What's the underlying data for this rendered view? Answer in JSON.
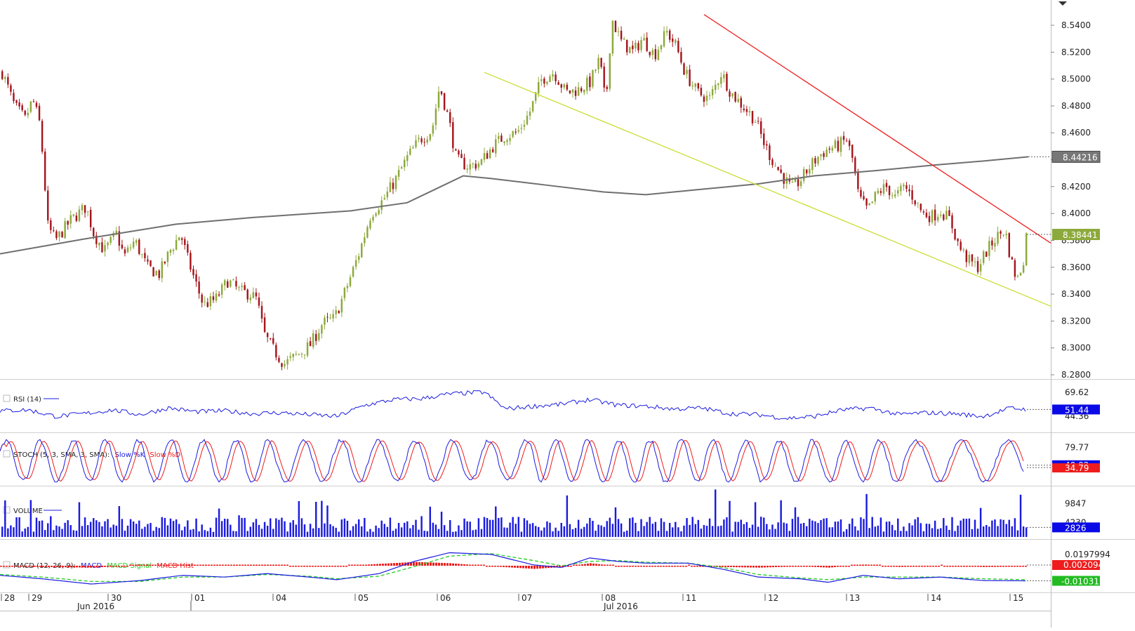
{
  "chart_data": [
    {
      "id": "price",
      "type": "candlestick",
      "ylim": [
        8.28,
        8.55
      ],
      "y_ticks": [
        "8.5400",
        "8.5200",
        "8.5000",
        "8.4800",
        "8.4600",
        "8.4400",
        "8.4200",
        "8.4000",
        "8.3800",
        "8.3600",
        "8.3400",
        "8.3200",
        "8.3000",
        "8.2800"
      ],
      "y_tick_values": [
        8.54,
        8.52,
        8.5,
        8.48,
        8.46,
        8.44,
        8.42,
        8.4,
        8.38,
        8.36,
        8.34,
        8.32,
        8.3,
        8.28
      ],
      "bar_count": 360,
      "close_keypoints": [
        [
          0,
          8.505
        ],
        [
          8,
          8.48
        ],
        [
          15,
          8.47
        ],
        [
          20,
          8.485
        ],
        [
          25,
          8.465
        ],
        [
          30,
          8.39
        ],
        [
          35,
          8.38
        ],
        [
          45,
          8.395
        ],
        [
          55,
          8.405
        ],
        [
          60,
          8.385
        ],
        [
          67,
          8.372
        ],
        [
          75,
          8.385
        ],
        [
          80,
          8.368
        ],
        [
          87,
          8.38
        ],
        [
          95,
          8.36
        ],
        [
          103,
          8.355
        ],
        [
          110,
          8.372
        ],
        [
          117,
          8.385
        ],
        [
          122,
          8.365
        ],
        [
          127,
          8.348
        ],
        [
          132,
          8.332
        ],
        [
          140,
          8.336
        ],
        [
          148,
          8.35
        ],
        [
          156,
          8.342
        ],
        [
          163,
          8.34
        ],
        [
          167,
          8.336
        ],
        [
          172,
          8.31
        ],
        [
          177,
          8.3
        ],
        [
          185,
          8.288
        ],
        [
          194,
          8.295
        ],
        [
          202,
          8.302
        ],
        [
          210,
          8.318
        ],
        [
          218,
          8.322
        ],
        [
          226,
          8.345
        ],
        [
          234,
          8.37
        ],
        [
          242,
          8.4
        ],
        [
          250,
          8.41
        ],
        [
          258,
          8.425
        ],
        [
          266,
          8.442
        ],
        [
          274,
          8.455
        ],
        [
          282,
          8.462
        ],
        [
          287,
          8.495
        ],
        [
          293,
          8.47
        ],
        [
          298,
          8.44
        ],
        [
          306,
          8.435
        ],
        [
          314,
          8.438
        ],
        [
          322,
          8.45
        ],
        [
          330,
          8.458
        ],
        [
          338,
          8.46
        ],
        [
          346,
          8.475
        ],
        [
          354,
          8.5
        ],
        [
          362,
          8.505
        ],
        [
          370,
          8.49
        ],
        [
          378,
          8.492
        ],
        [
          386,
          8.498
        ],
        [
          392,
          8.515
        ],
        [
          396,
          8.48
        ],
        [
          400,
          8.545
        ],
        [
          406,
          8.528
        ],
        [
          414,
          8.52
        ],
        [
          420,
          8.53
        ],
        [
          428,
          8.518
        ],
        [
          436,
          8.535
        ],
        [
          442,
          8.525
        ],
        [
          448,
          8.505
        ],
        [
          456,
          8.49
        ],
        [
          464,
          8.485
        ],
        [
          472,
          8.505
        ],
        [
          478,
          8.49
        ],
        [
          486,
          8.48
        ],
        [
          494,
          8.47
        ],
        [
          500,
          8.452
        ],
        [
          506,
          8.438
        ],
        [
          512,
          8.428
        ],
        [
          518,
          8.418
        ],
        [
          524,
          8.425
        ],
        [
          530,
          8.435
        ],
        [
          536,
          8.443
        ],
        [
          542,
          8.448
        ],
        [
          548,
          8.45
        ],
        [
          554,
          8.455
        ],
        [
          558,
          8.44
        ],
        [
          562,
          8.412
        ],
        [
          568,
          8.402
        ],
        [
          574,
          8.415
        ],
        [
          580,
          8.42
        ],
        [
          586,
          8.412
        ],
        [
          592,
          8.42
        ],
        [
          598,
          8.412
        ],
        [
          604,
          8.4
        ],
        [
          610,
          8.398
        ],
        [
          616,
          8.402
        ],
        [
          622,
          8.395
        ],
        [
          628,
          8.375
        ],
        [
          634,
          8.365
        ],
        [
          640,
          8.36
        ],
        [
          646,
          8.372
        ],
        [
          652,
          8.382
        ],
        [
          658,
          8.388
        ],
        [
          662,
          8.365
        ],
        [
          666,
          8.35
        ],
        [
          670,
          8.365
        ],
        [
          672,
          8.384
        ]
      ],
      "trendlines": [
        {
          "color": "#ee1c1c",
          "points": [
            [
              1003,
              8.548
            ],
            [
              1497,
              8.378
            ]
          ]
        },
        {
          "color": "#ccdd33",
          "points": [
            [
              690,
              8.505
            ],
            [
              1497,
              8.331
            ]
          ]
        }
      ],
      "moving_average": {
        "color": "#6f6f6f",
        "points": [
          [
            0,
            8.37
          ],
          [
            120,
            8.381
          ],
          [
            250,
            8.392
          ],
          [
            360,
            8.397
          ],
          [
            500,
            8.402
          ],
          [
            580,
            8.408
          ],
          [
            620,
            8.418
          ],
          [
            660,
            8.428
          ],
          [
            700,
            8.426
          ],
          [
            780,
            8.421
          ],
          [
            860,
            8.416
          ],
          [
            920,
            8.414
          ],
          [
            1000,
            8.418
          ],
          [
            1080,
            8.422
          ],
          [
            1160,
            8.428
          ],
          [
            1250,
            8.432
          ],
          [
            1330,
            8.436
          ],
          [
            1400,
            8.439
          ],
          [
            1465,
            8.44216
          ]
        ]
      },
      "last_ma_label": "8.44216",
      "last_price_label": "8.38441",
      "ma_color": "#666666",
      "last_price_color": "#8ca93b"
    },
    {
      "id": "rsi",
      "type": "line",
      "legend": "RSI (14)",
      "ylim": [
        30,
        78
      ],
      "y_ticks": [
        "69.62",
        "44.36"
      ],
      "y_tick_values": [
        69.62,
        44.36
      ],
      "color": "#1b1bdf",
      "keypoints": [
        [
          0,
          50
        ],
        [
          40,
          51
        ],
        [
          80,
          44
        ],
        [
          120,
          47
        ],
        [
          160,
          51
        ],
        [
          200,
          46
        ],
        [
          240,
          53
        ],
        [
          280,
          49
        ],
        [
          320,
          50
        ],
        [
          360,
          47
        ],
        [
          400,
          48
        ],
        [
          440,
          46
        ],
        [
          480,
          44
        ],
        [
          520,
          56
        ],
        [
          560,
          62
        ],
        [
          600,
          63
        ],
        [
          640,
          68
        ],
        [
          690,
          70
        ],
        [
          720,
          52
        ],
        [
          760,
          55
        ],
        [
          800,
          57
        ],
        [
          840,
          62
        ],
        [
          880,
          56
        ],
        [
          920,
          55
        ],
        [
          960,
          52
        ],
        [
          1000,
          53
        ],
        [
          1040,
          47
        ],
        [
          1080,
          46
        ],
        [
          1120,
          42
        ],
        [
          1160,
          44
        ],
        [
          1200,
          51
        ],
        [
          1240,
          53
        ],
        [
          1280,
          46
        ],
        [
          1320,
          48
        ],
        [
          1360,
          47
        ],
        [
          1400,
          44
        ],
        [
          1440,
          53
        ],
        [
          1463,
          51.44
        ]
      ],
      "last_label": "51.44",
      "last_color": "#0a0ae6"
    },
    {
      "id": "stoch",
      "type": "line",
      "legend_prefix": "STOCH (5, 3, SMA, 3, SMA):",
      "series": [
        {
          "name": "Slow %K",
          "color": "#1b1bdf"
        },
        {
          "name": "Slow %D",
          "color": "#ee1c1c"
        }
      ],
      "ylim": [
        0,
        100
      ],
      "y_ticks": [
        "79.77"
      ],
      "y_tick_values": [
        79.77
      ],
      "last_labels": [
        "40.02",
        "34.79"
      ],
      "last_colors": [
        "#0a0ae6",
        "#ee1c1c"
      ]
    },
    {
      "id": "volume",
      "type": "bar",
      "legend": "VOLUME",
      "ylim": [
        0,
        13500
      ],
      "y_ticks": [
        "9847",
        "4230"
      ],
      "y_tick_values": [
        9847,
        4230
      ],
      "color": "#1b1bdf",
      "last_label": "2826",
      "last_color": "#0a0ae6"
    },
    {
      "id": "macd",
      "type": "line",
      "legend_prefix": "MACD (12, 26, 9):",
      "series": [
        {
          "name": "MACD",
          "color": "#1b1bdf"
        },
        {
          "name": "MACD Signal",
          "color": "#22cc22"
        },
        {
          "name": "MACD Hist",
          "color": "#ee1c1c"
        }
      ],
      "ylim": [
        -0.022,
        0.028
      ],
      "y_ticks": [
        "0.0197994"
      ],
      "y_tick_values": [
        0.0197994
      ],
      "macd_keypoints": [
        [
          0,
          -0.004
        ],
        [
          60,
          -0.008
        ],
        [
          130,
          -0.014
        ],
        [
          200,
          -0.01
        ],
        [
          260,
          -0.004
        ],
        [
          320,
          -0.006
        ],
        [
          380,
          -0.002
        ],
        [
          440,
          -0.006
        ],
        [
          480,
          -0.009
        ],
        [
          540,
          -0.002
        ],
        [
          590,
          0.012
        ],
        [
          640,
          0.022
        ],
        [
          700,
          0.02
        ],
        [
          760,
          0.008
        ],
        [
          800,
          0.005
        ],
        [
          840,
          0.016
        ],
        [
          880,
          0.012
        ],
        [
          920,
          0.01
        ],
        [
          980,
          0.01
        ],
        [
          1030,
          0.003
        ],
        [
          1080,
          -0.006
        ],
        [
          1140,
          -0.008
        ],
        [
          1180,
          -0.012
        ],
        [
          1230,
          -0.004
        ],
        [
          1280,
          -0.008
        ],
        [
          1340,
          -0.006
        ],
        [
          1400,
          -0.01
        ],
        [
          1463,
          -0.0103115
        ]
      ],
      "signal_keypoints": [
        [
          0,
          -0.003
        ],
        [
          60,
          -0.006
        ],
        [
          130,
          -0.011
        ],
        [
          200,
          -0.011
        ],
        [
          260,
          -0.006
        ],
        [
          320,
          -0.006
        ],
        [
          380,
          -0.003
        ],
        [
          440,
          -0.005
        ],
        [
          480,
          -0.008
        ],
        [
          540,
          -0.005
        ],
        [
          590,
          0.006
        ],
        [
          640,
          0.018
        ],
        [
          700,
          0.021
        ],
        [
          760,
          0.013
        ],
        [
          800,
          0.007
        ],
        [
          840,
          0.012
        ],
        [
          880,
          0.013
        ],
        [
          920,
          0.011
        ],
        [
          980,
          0.01
        ],
        [
          1030,
          0.005
        ],
        [
          1080,
          -0.003
        ],
        [
          1140,
          -0.007
        ],
        [
          1180,
          -0.009
        ],
        [
          1230,
          -0.006
        ],
        [
          1280,
          -0.006
        ],
        [
          1340,
          -0.006
        ],
        [
          1400,
          -0.008
        ],
        [
          1463,
          -0.009
        ]
      ],
      "last_labels": [
        "0.0020946",
        "-0.0103115"
      ],
      "last_colors": [
        "#ee1c1c",
        "#22bb22"
      ]
    }
  ],
  "x_axis": {
    "day_labels": [
      "28",
      "29",
      "30",
      "01",
      "04",
      "05",
      "06",
      "07",
      "08",
      "11",
      "12",
      "13",
      "14",
      "15"
    ],
    "month_labels": [
      "Jun 2016",
      "Jul 2016"
    ]
  }
}
